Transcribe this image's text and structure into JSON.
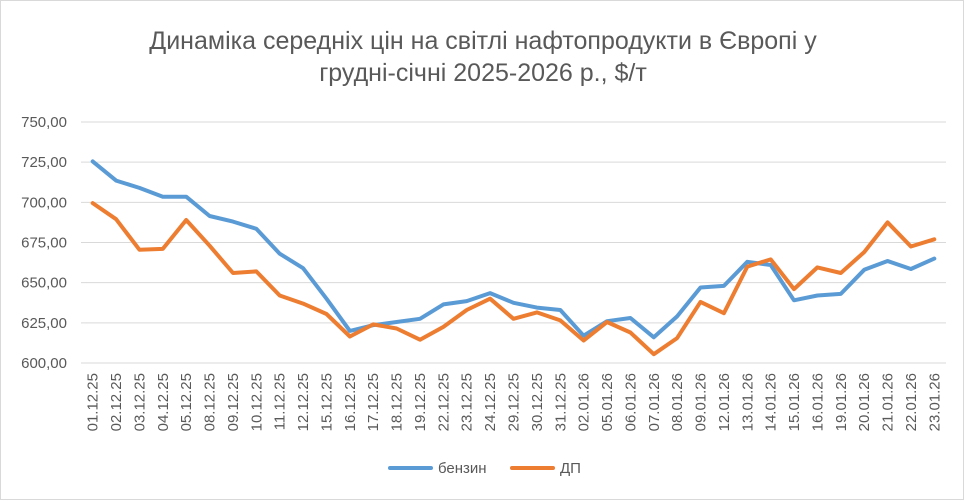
{
  "chart_data": {
    "type": "line",
    "title": "Динаміка середніх цін на світлі нафтопродукти в Європі у грудні-січні 2025-2026 р., $/т",
    "title_lines": [
      "Динаміка середніх цін на світлі нафтопродукти в Європі у",
      "грудні-січні 2025-2026 р., $/т"
    ],
    "xlabel": "",
    "ylabel": "",
    "ylim": [
      600,
      750
    ],
    "y_ticks": [
      "750,00",
      "725,00",
      "700,00",
      "675,00",
      "650,00",
      "625,00",
      "600,00"
    ],
    "y_tick_values": [
      750,
      725,
      700,
      675,
      650,
      625,
      600
    ],
    "grid": true,
    "legend_position": "bottom",
    "categories": [
      "01.12.25",
      "02.12.25",
      "03.12.25",
      "04.12.25",
      "05.12.25",
      "08.12.25",
      "09.12.25",
      "10.12.25",
      "11.12.25",
      "12.12.25",
      "15.12.25",
      "16.12.25",
      "17.12.25",
      "18.12.25",
      "19.12.25",
      "22.12.25",
      "23.12.25",
      "24.12.25",
      "29.12.25",
      "30.12.25",
      "31.12.25",
      "02.01.26",
      "05.01.26",
      "06.01.26",
      "07.01.26",
      "08.01.26",
      "09.01.26",
      "12.01.26",
      "13.01.26",
      "14.01.26",
      "15.01.26",
      "16.01.26",
      "19.01.26",
      "20.01.26",
      "21.01.26",
      "22.01.26",
      "23.01.26"
    ],
    "series": [
      {
        "name": "бензин",
        "color": "#5b9bd5",
        "values": [
          725.5,
          713.5,
          709,
          703.5,
          703.5,
          691.5,
          688,
          683.5,
          668,
          659,
          640,
          620,
          623.5,
          625.5,
          627.5,
          636.5,
          638.5,
          643.5,
          637.5,
          634.5,
          633,
          617,
          626,
          628,
          616,
          629,
          647,
          648,
          663,
          661,
          639,
          642,
          643,
          658,
          663.5,
          658.5,
          665
        ]
      },
      {
        "name": "ДП",
        "color": "#ed7d31",
        "values": [
          699.5,
          689.5,
          670.5,
          671,
          689,
          673,
          656,
          657,
          642,
          637,
          630.5,
          616.5,
          624,
          621.5,
          614.5,
          622.5,
          633,
          640,
          627.5,
          631.5,
          626.5,
          614,
          625.5,
          619,
          605.5,
          615.5,
          638,
          631,
          660,
          664.5,
          646,
          659.5,
          656,
          669,
          687.5,
          672.5,
          677
        ]
      }
    ]
  }
}
